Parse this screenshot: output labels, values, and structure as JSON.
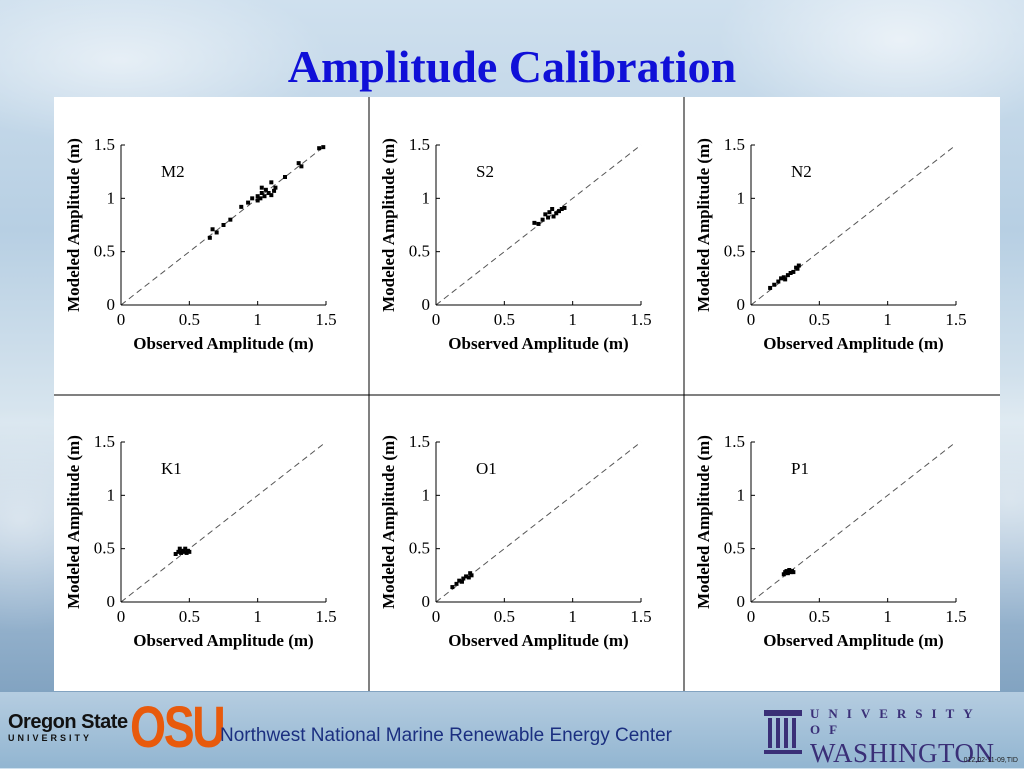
{
  "slide": {
    "title": "Amplitude Calibration",
    "footer": {
      "osu_line1": "Oregon State",
      "osu_line2": "UNIVERSITY",
      "osu_mark": "OSU",
      "center_name": "Northwest National Marine Renewable Energy Center",
      "uw_line1": "UNIVERSITY OF",
      "uw_line2": "WASHINGTON",
      "code": "012,02-11-09,TID"
    }
  },
  "chart_data": [
    {
      "type": "scatter",
      "label": "M2",
      "xlabel": "Observed Amplitude (m)",
      "ylabel": "Modeled Amplitude (m)",
      "xlim": [
        0,
        1.5
      ],
      "ylim": [
        0,
        1.5
      ],
      "xticks": [
        "0",
        "0.5",
        "1",
        "1.5"
      ],
      "yticks": [
        "0",
        "0.5",
        "1",
        "1.5"
      ],
      "reference_line": "y=x dashed",
      "points": [
        [
          0.65,
          0.63
        ],
        [
          0.67,
          0.71
        ],
        [
          0.7,
          0.68
        ],
        [
          0.75,
          0.75
        ],
        [
          0.8,
          0.8
        ],
        [
          0.88,
          0.92
        ],
        [
          0.93,
          0.96
        ],
        [
          0.96,
          1.0
        ],
        [
          1.0,
          0.98
        ],
        [
          1.0,
          1.02
        ],
        [
          1.02,
          1.0
        ],
        [
          1.03,
          1.05
        ],
        [
          1.03,
          1.1
        ],
        [
          1.05,
          1.02
        ],
        [
          1.06,
          1.08
        ],
        [
          1.08,
          1.05
        ],
        [
          1.1,
          1.15
        ],
        [
          1.1,
          1.03
        ],
        [
          1.12,
          1.07
        ],
        [
          1.13,
          1.1
        ],
        [
          1.2,
          1.2
        ],
        [
          1.3,
          1.33
        ],
        [
          1.32,
          1.3
        ],
        [
          1.45,
          1.47
        ],
        [
          1.48,
          1.48
        ]
      ]
    },
    {
      "type": "scatter",
      "label": "S2",
      "xlabel": "Observed Amplitude (m)",
      "ylabel": "Modeled Amplitude (m)",
      "xlim": [
        0,
        1.5
      ],
      "ylim": [
        0,
        1.5
      ],
      "xticks": [
        "0",
        "0.5",
        "1",
        "1.5"
      ],
      "yticks": [
        "0",
        "0.5",
        "1",
        "1.5"
      ],
      "reference_line": "y=x dashed",
      "points": [
        [
          0.72,
          0.77
        ],
        [
          0.75,
          0.76
        ],
        [
          0.78,
          0.8
        ],
        [
          0.8,
          0.85
        ],
        [
          0.82,
          0.82
        ],
        [
          0.83,
          0.87
        ],
        [
          0.85,
          0.9
        ],
        [
          0.86,
          0.83
        ],
        [
          0.88,
          0.86
        ],
        [
          0.9,
          0.88
        ],
        [
          0.92,
          0.9
        ],
        [
          0.94,
          0.91
        ]
      ]
    },
    {
      "type": "scatter",
      "label": "N2",
      "xlabel": "Observed Amplitude (m)",
      "ylabel": "Modeled Amplitude (m)",
      "xlim": [
        0,
        1.5
      ],
      "ylim": [
        0,
        1.5
      ],
      "xticks": [
        "0",
        "0.5",
        "1",
        "1.5"
      ],
      "yticks": [
        "0",
        "0.5",
        "1",
        "1.5"
      ],
      "reference_line": "y=x dashed",
      "points": [
        [
          0.14,
          0.16
        ],
        [
          0.17,
          0.19
        ],
        [
          0.2,
          0.22
        ],
        [
          0.22,
          0.25
        ],
        [
          0.24,
          0.26
        ],
        [
          0.25,
          0.24
        ],
        [
          0.27,
          0.28
        ],
        [
          0.29,
          0.3
        ],
        [
          0.31,
          0.31
        ],
        [
          0.33,
          0.35
        ],
        [
          0.34,
          0.34
        ],
        [
          0.35,
          0.37
        ]
      ]
    },
    {
      "type": "scatter",
      "label": "K1",
      "xlabel": "Observed Amplitude (m)",
      "ylabel": "Modeled Amplitude (m)",
      "xlim": [
        0,
        1.5
      ],
      "ylim": [
        0,
        1.5
      ],
      "xticks": [
        "0",
        "0.5",
        "1",
        "1.5"
      ],
      "yticks": [
        "0",
        "0.5",
        "1",
        "1.5"
      ],
      "reference_line": "y=x dashed",
      "points": [
        [
          0.4,
          0.45
        ],
        [
          0.42,
          0.47
        ],
        [
          0.43,
          0.5
        ],
        [
          0.44,
          0.46
        ],
        [
          0.45,
          0.48
        ],
        [
          0.46,
          0.47
        ],
        [
          0.47,
          0.5
        ],
        [
          0.48,
          0.46
        ],
        [
          0.49,
          0.48
        ],
        [
          0.5,
          0.47
        ]
      ]
    },
    {
      "type": "scatter",
      "label": "O1",
      "xlabel": "Observed Amplitude (m)",
      "ylabel": "Modeled Amplitude (m)",
      "xlim": [
        0,
        1.5
      ],
      "ylim": [
        0,
        1.5
      ],
      "xticks": [
        "0",
        "0.5",
        "1",
        "1.5"
      ],
      "yticks": [
        "0",
        "0.5",
        "1",
        "1.5"
      ],
      "reference_line": "y=x dashed",
      "points": [
        [
          0.12,
          0.14
        ],
        [
          0.15,
          0.17
        ],
        [
          0.17,
          0.2
        ],
        [
          0.19,
          0.19
        ],
        [
          0.2,
          0.22
        ],
        [
          0.22,
          0.24
        ],
        [
          0.24,
          0.23
        ],
        [
          0.25,
          0.27
        ],
        [
          0.26,
          0.25
        ]
      ]
    },
    {
      "type": "scatter",
      "label": "P1",
      "xlabel": "Observed Amplitude (m)",
      "ylabel": "Modeled Amplitude (m)",
      "xlim": [
        0,
        1.5
      ],
      "ylim": [
        0,
        1.5
      ],
      "xticks": [
        "0",
        "0.5",
        "1",
        "1.5"
      ],
      "yticks": [
        "0",
        "0.5",
        "1",
        "1.5"
      ],
      "reference_line": "y=x dashed",
      "points": [
        [
          0.24,
          0.26
        ],
        [
          0.25,
          0.28
        ],
        [
          0.26,
          0.29
        ],
        [
          0.27,
          0.27
        ],
        [
          0.28,
          0.3
        ],
        [
          0.29,
          0.28
        ],
        [
          0.3,
          0.29
        ],
        [
          0.31,
          0.28
        ]
      ]
    }
  ]
}
